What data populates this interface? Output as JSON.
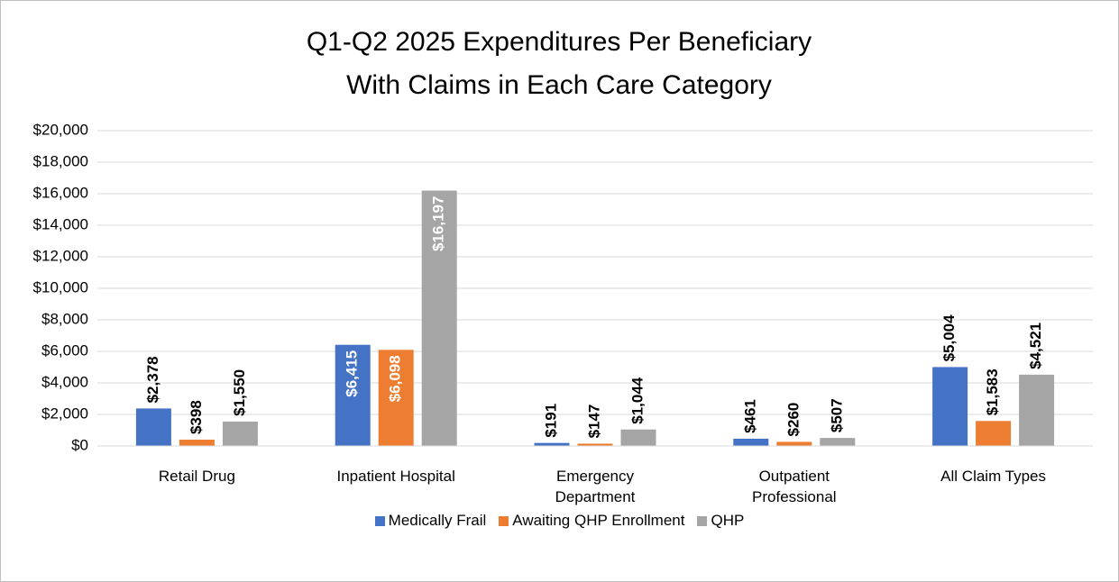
{
  "chart_data": {
    "type": "bar",
    "title": "Q1-Q2 2025 Expenditures Per Beneficiary",
    "subtitle": "With Claims in Each Care Category",
    "categories": [
      "Retail Drug",
      "Inpatient Hospital",
      "Emergency Department",
      "Outpatient Professional",
      "All Claim Types"
    ],
    "series": [
      {
        "name": "Medically Frail",
        "color": "#4472c4",
        "values": [
          2378,
          6415,
          191,
          461,
          5004
        ],
        "value_labels": [
          "$2,378",
          "$6,415",
          "$191",
          "$461",
          "$5,004"
        ]
      },
      {
        "name": "Awaiting QHP Enrollment",
        "color": "#ed7d31",
        "values": [
          398,
          6098,
          147,
          260,
          1583
        ],
        "value_labels": [
          "$398",
          "$6,098",
          "$147",
          "$260",
          "$1,583"
        ]
      },
      {
        "name": "QHP",
        "color": "#a5a5a5",
        "values": [
          1550,
          16197,
          1044,
          507,
          4521
        ],
        "value_labels": [
          "$1,550",
          "$16,197",
          "$1,044",
          "$507",
          "$4,521"
        ]
      }
    ],
    "ylim": [
      0,
      20000
    ],
    "yticks": [
      {
        "value": 0,
        "label": "$0"
      },
      {
        "value": 2000,
        "label": "$2,000"
      },
      {
        "value": 4000,
        "label": "$4,000"
      },
      {
        "value": 6000,
        "label": "$6,000"
      },
      {
        "value": 8000,
        "label": "$8,000"
      },
      {
        "value": 10000,
        "label": "$10,000"
      },
      {
        "value": 12000,
        "label": "$12,000"
      },
      {
        "value": 14000,
        "label": "$14,000"
      },
      {
        "value": 16000,
        "label": "$16,000"
      },
      {
        "value": 18000,
        "label": "$18,000"
      },
      {
        "value": 20000,
        "label": "$20,000"
      }
    ],
    "grid": true,
    "legend": "bottom"
  }
}
